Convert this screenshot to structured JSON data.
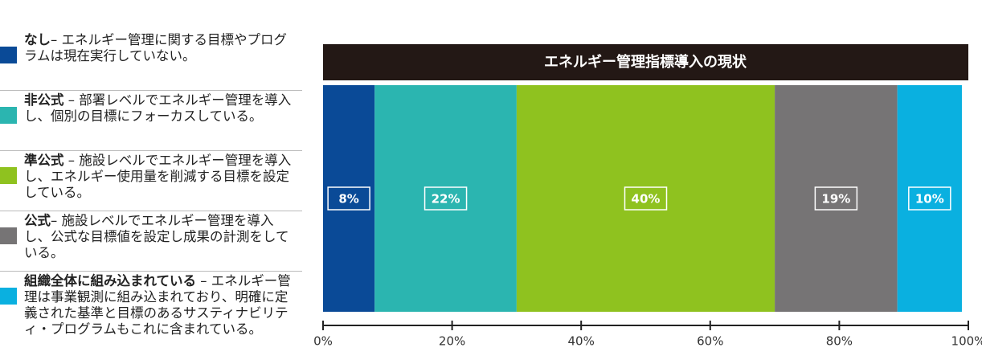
{
  "chart_data": {
    "type": "stacked-bar-horizontal",
    "title": "エネルギー管理指標導入の現状",
    "series": [
      {
        "name": "なし",
        "description": "– エネルギー管理に関する目標やプログラムは現在実行していない。",
        "color": "#0a4a97",
        "values": [
          8
        ],
        "value_labels": [
          "8%"
        ]
      },
      {
        "name": "非公式",
        "description": " – 部署レベルでエネルギー管理を導入し、個別の目標にフォーカスしている。",
        "color": "#2bb5b0",
        "values": [
          22
        ],
        "value_labels": [
          "22%"
        ]
      },
      {
        "name": "準公式",
        "description": " – 施設レベルでエネルギー管理を導入し、エネルギー使用量を削減する目標を設定している。",
        "color": "#8fc21f",
        "values": [
          40
        ],
        "value_labels": [
          "40%"
        ]
      },
      {
        "name": "公式",
        "description": "– 施設レベルでエネルギー管理を導入し、公式な目標値を設定し成果の計測をしている。",
        "color": "#767475",
        "values": [
          19
        ],
        "value_labels": [
          "19%"
        ]
      },
      {
        "name": "組織全体に組み込まれている",
        "description": " – エネルギー管理は事業観測に組み込まれており、明確に定義された基準と目標のあるサスティナビリティ・プログラムもこれに含まれている。",
        "color": "#0ab0e0",
        "values": [
          10
        ],
        "value_labels": [
          "10%"
        ]
      }
    ],
    "xlim": [
      0,
      100
    ],
    "xticks": [
      {
        "value": 0,
        "label": "0%"
      },
      {
        "value": 20,
        "label": "20%"
      },
      {
        "value": 40,
        "label": "40%"
      },
      {
        "value": 60,
        "label": "60%"
      },
      {
        "value": 80,
        "label": "80%"
      },
      {
        "value": 100,
        "label": "100%"
      }
    ]
  }
}
